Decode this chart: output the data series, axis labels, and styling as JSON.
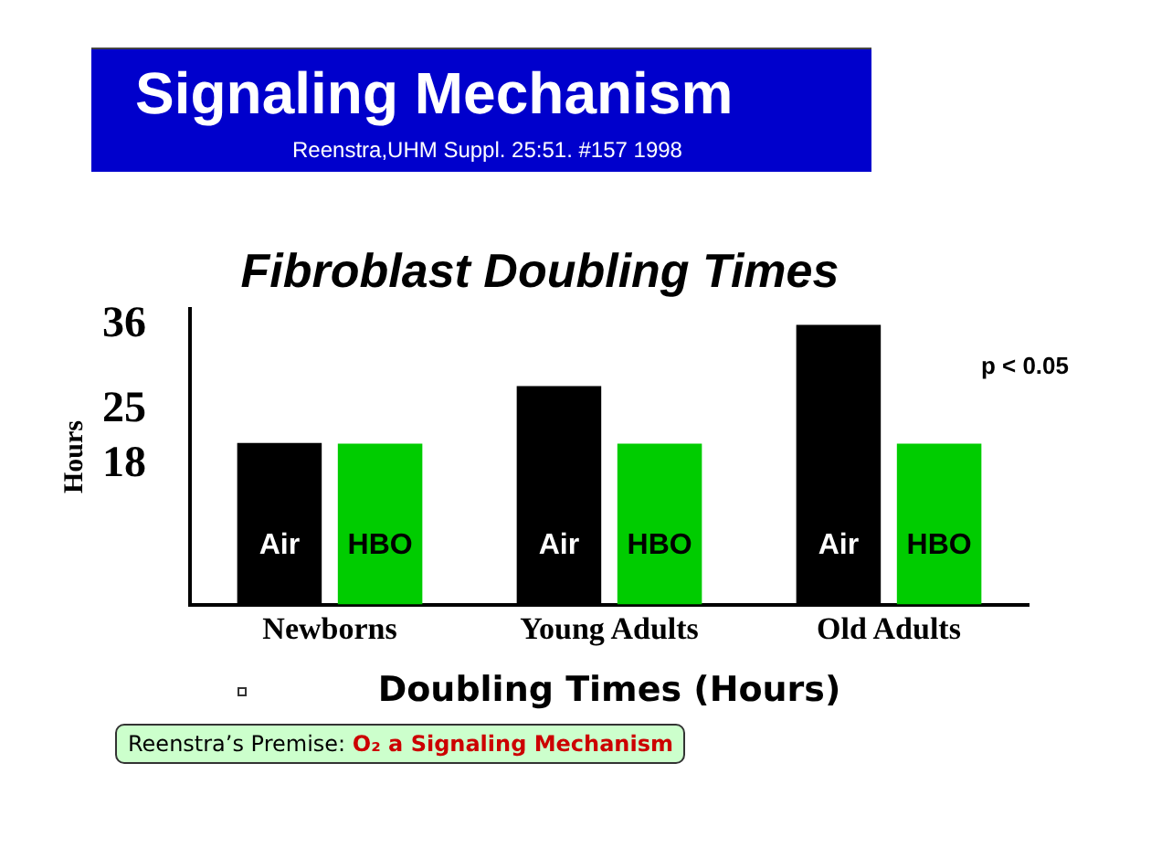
{
  "chart_data": {
    "type": "bar",
    "title": "Signaling Mechanism",
    "subtitle": "Reenstra,UHM Suppl. 25:51. #157 1998",
    "categories": [
      "Newborns",
      "Young Adults",
      "Old Adults"
    ],
    "series": [
      {
        "name": "Air",
        "color": "#000000",
        "values": [
          20.8,
          28.1,
          36
        ]
      },
      {
        "name": "HBO",
        "color": "#00cc00",
        "values": [
          20.7,
          20.7,
          20.7
        ]
      }
    ],
    "ylabel": "Hours",
    "xlabel": "Doubling Times (Hours)",
    "ylim": [
      0,
      38
    ],
    "yticks": [
      18,
      25,
      36
    ],
    "grid": false,
    "legend": false,
    "annotations": [
      "Fibroblast Doubling Times",
      "p < 0.05",
      "Reenstra’s Premise:",
      "O₂ a Signaling Mechanism"
    ]
  }
}
